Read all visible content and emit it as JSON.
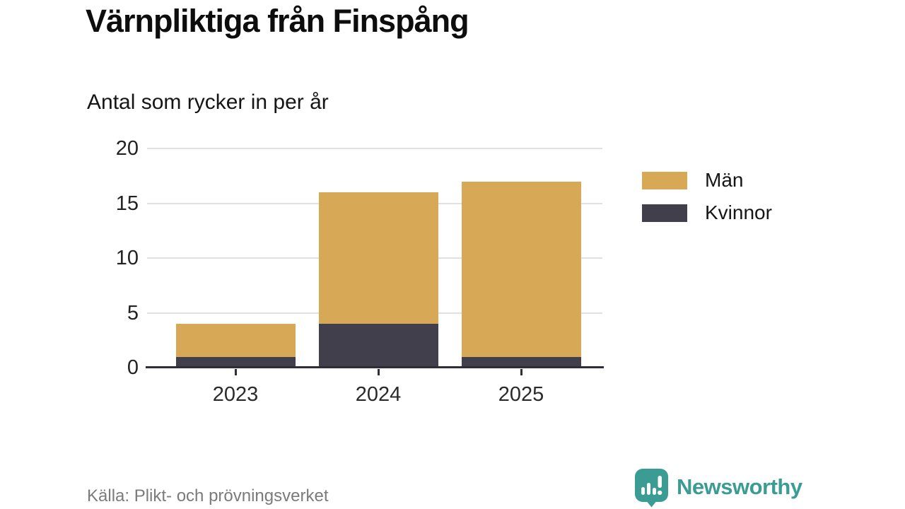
{
  "header": {
    "title": "Värnpliktiga från Finspång",
    "subtitle": "Antal som rycker in per år"
  },
  "chart_data": {
    "type": "bar",
    "stacked": true,
    "title": "Värnpliktiga från Finspång",
    "subtitle": "Antal som rycker in per år",
    "categories": [
      "2023",
      "2024",
      "2025"
    ],
    "series": [
      {
        "key": "men",
        "name": "Män",
        "color": "#D7A957",
        "values": [
          3,
          12,
          16
        ]
      },
      {
        "key": "women",
        "name": "Kvinnor",
        "color": "#423F4D",
        "values": [
          1,
          4,
          1
        ]
      }
    ],
    "stack_bottom_to_top": [
      "women",
      "men"
    ],
    "totals": [
      4,
      16,
      17
    ],
    "xlabel": "",
    "ylabel": "",
    "ylim": [
      0,
      20
    ],
    "yticks": [
      0,
      5,
      10,
      15,
      20
    ],
    "grid": "horizontal",
    "legend_position": "right"
  },
  "footer": {
    "source": "Källa: Plikt- och prövningsverket",
    "brand": "Newsworthy"
  },
  "icons": {
    "brand_logo": "speech-bubble-bar-chart-exclamation-icon"
  },
  "colors": {
    "men": "#D7A957",
    "women": "#423F4D",
    "grid": "#E1E1E1",
    "axis": "#2E2D38",
    "brand_teal": "#3B9C94",
    "source_text": "#7B7B7B"
  }
}
